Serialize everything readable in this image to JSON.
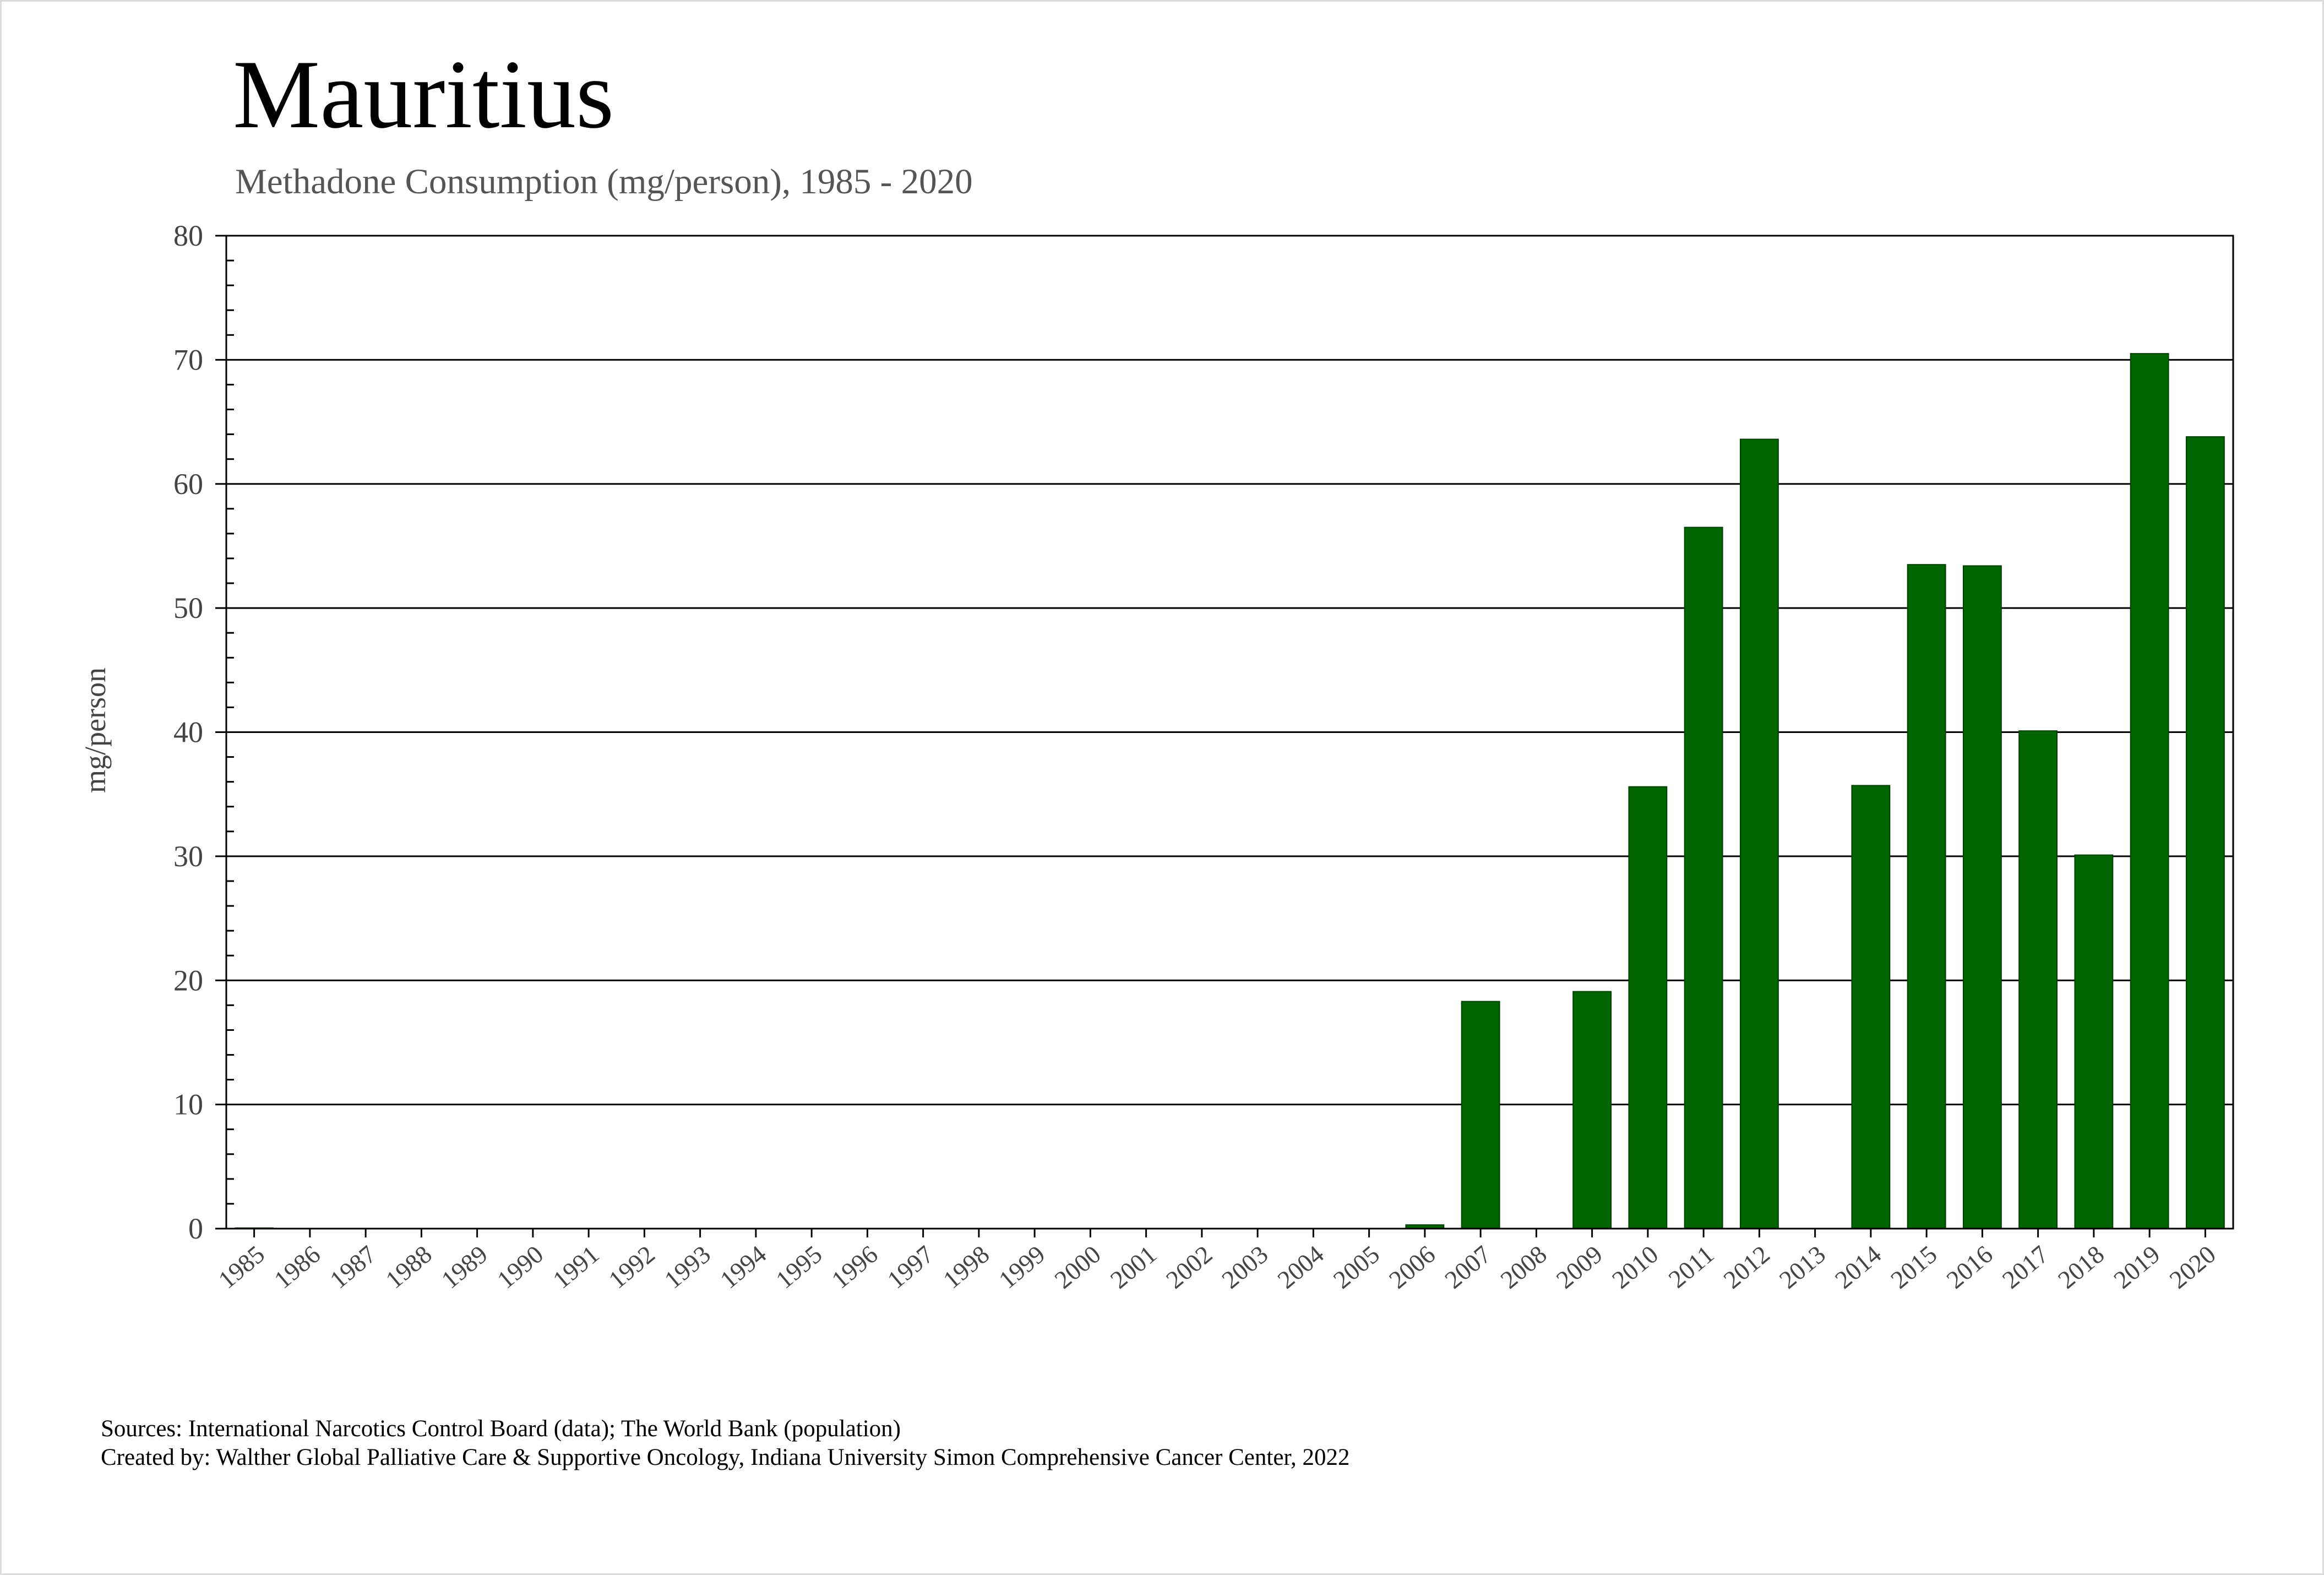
{
  "chart_data": {
    "type": "bar",
    "title": "Mauritius",
    "subtitle": "Methadone Consumption (mg/person), 1985 - 2020",
    "xlabel": "",
    "ylabel": "mg/person",
    "ylim": [
      0,
      80
    ],
    "yticks": [
      0,
      10,
      20,
      30,
      40,
      50,
      60,
      70,
      80
    ],
    "grid": true,
    "bar_color": "#006400",
    "categories": [
      "1985",
      "1986",
      "1987",
      "1988",
      "1989",
      "1990",
      "1991",
      "1992",
      "1993",
      "1994",
      "1995",
      "1996",
      "1997",
      "1998",
      "1999",
      "2000",
      "2001",
      "2002",
      "2003",
      "2004",
      "2005",
      "2006",
      "2007",
      "2008",
      "2009",
      "2010",
      "2011",
      "2012",
      "2013",
      "2014",
      "2015",
      "2016",
      "2017",
      "2018",
      "2019",
      "2020"
    ],
    "values": [
      0.05,
      0,
      0,
      0,
      0,
      0,
      0,
      0,
      0,
      0,
      0,
      0,
      0,
      0,
      0,
      0,
      0,
      0,
      0,
      0,
      0,
      0.3,
      18.3,
      0,
      19.1,
      35.6,
      56.5,
      63.6,
      0,
      35.7,
      53.5,
      53.4,
      40.1,
      30.1,
      70.5,
      63.8
    ]
  },
  "footer": {
    "sources": "Sources: International Narcotics Control Board (data); The World Bank (population)",
    "created_by": "Created by: Walther Global Palliative Care & Supportive Oncology, Indiana University Simon Comprehensive Cancer Center, 2022"
  }
}
